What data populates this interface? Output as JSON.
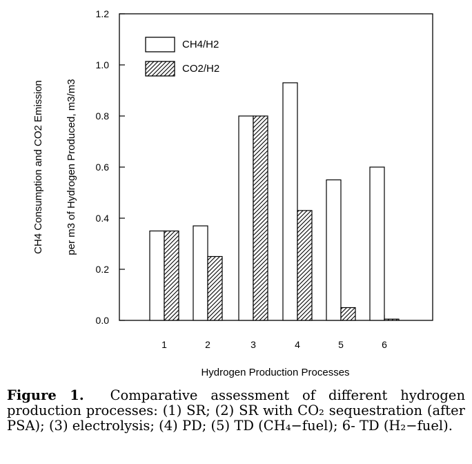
{
  "chart_data": {
    "type": "bar",
    "categories": [
      "1",
      "2",
      "3",
      "4",
      "5",
      "6"
    ],
    "series": [
      {
        "name": "CH4/H2",
        "values": [
          0.35,
          0.37,
          0.8,
          0.93,
          0.55,
          0.6
        ],
        "fill": "#ffffff"
      },
      {
        "name": "CO2/H2",
        "values": [
          0.35,
          0.25,
          0.8,
          0.43,
          0.05,
          0.005
        ],
        "fill": "hatched"
      }
    ],
    "title": "",
    "xlabel": "Hydrogen Production Processes",
    "ylabel_line1": "CH4 Consumption and CO2 Emission",
    "ylabel_line2": "per m3 of Hydrogen Produced, m3/m3",
    "ylim": [
      0,
      1.2
    ],
    "yticks": [
      "0.0",
      "0.2",
      "0.4",
      "0.6",
      "0.8",
      "1.0",
      "1.2"
    ],
    "legend_position": "top-left",
    "grid": false
  },
  "caption": {
    "label": "Figure 1.",
    "text": "Comparative assessment of different hydrogen production processes: (1) SR; (2) SR with CO₂ sequestration (after PSA); (3) electrolysis; (4) PD; (5) TD (CH₄−fuel); 6- TD (H₂−fuel)."
  }
}
